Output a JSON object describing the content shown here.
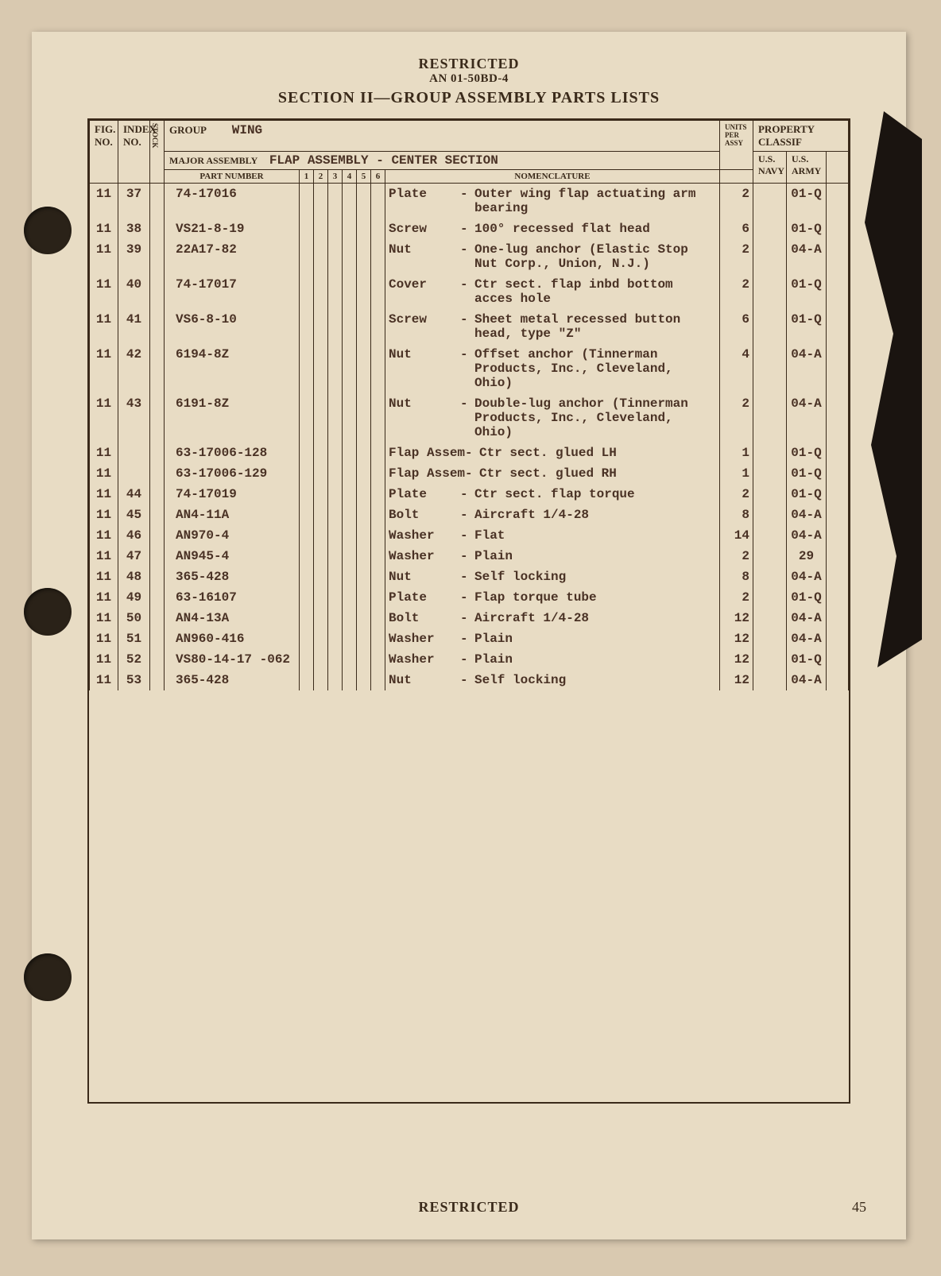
{
  "header": {
    "classification": "RESTRICTED",
    "doc_id": "AN 01-50BD-4",
    "section_title": "SECTION II—GROUP ASSEMBLY PARTS LISTS"
  },
  "table_header": {
    "fig_no": "FIG. NO.",
    "index_no": "INDEX NO.",
    "stock": "STOCK",
    "group_label": "GROUP",
    "group_value": "WING",
    "major_assembly_label": "MAJOR ASSEMBLY",
    "major_assembly_value": "FLAP ASSEMBLY - CENTER SECTION",
    "part_number": "PART NUMBER",
    "level_cols": [
      "1",
      "2",
      "3",
      "4",
      "5",
      "6"
    ],
    "nomenclature": "NOMENCLATURE",
    "units": "UNITS PER ASSY",
    "property_class": "PROPERTY CLASSIF",
    "navy": "U.S. NAVY",
    "army": "U.S. ARMY"
  },
  "rows": [
    {
      "fig": "11",
      "idx": "37",
      "part": "74-17016",
      "type": "Plate",
      "desc": "Outer wing flap actuating arm bearing",
      "units": "2",
      "army": "01-Q"
    },
    {
      "fig": "11",
      "idx": "38",
      "part": "VS21-8-19",
      "type": "Screw",
      "desc": "100° recessed flat head",
      "units": "6",
      "army": "01-Q"
    },
    {
      "fig": "11",
      "idx": "39",
      "part": "22A17-82",
      "type": "Nut",
      "desc": "One-lug anchor (Elastic Stop Nut Corp., Union, N.J.)",
      "units": "2",
      "army": "04-A"
    },
    {
      "fig": "11",
      "idx": "40",
      "part": "74-17017",
      "type": "Cover",
      "desc": "Ctr sect. flap inbd bottom acces hole",
      "units": "2",
      "army": "01-Q"
    },
    {
      "fig": "11",
      "idx": "41",
      "part": "VS6-8-10",
      "type": "Screw",
      "desc": "Sheet metal recessed button head, type \"Z\"",
      "units": "6",
      "army": "01-Q"
    },
    {
      "fig": "11",
      "idx": "42",
      "part": "6194-8Z",
      "type": "Nut",
      "desc": "Offset anchor (Tinnerman Products, Inc., Cleveland, Ohio)",
      "units": "4",
      "army": "04-A"
    },
    {
      "fig": "11",
      "idx": "43",
      "part": "6191-8Z",
      "type": "Nut",
      "desc": "Double-lug anchor (Tinnerman Products, Inc., Cleveland, Ohio)",
      "units": "2",
      "army": "04-A"
    },
    {
      "fig": "11",
      "idx": "",
      "part": "63-17006-128",
      "type": "Flap Assem",
      "desc": "Ctr sect. glued LH",
      "units": "1",
      "army": "01-Q"
    },
    {
      "fig": "11",
      "idx": "",
      "part": "63-17006-129",
      "type": "Flap Assem",
      "desc": "Ctr sect. glued RH",
      "units": "1",
      "army": "01-Q"
    },
    {
      "fig": "11",
      "idx": "44",
      "part": "74-17019",
      "type": "Plate",
      "desc": "Ctr sect. flap torque",
      "units": "2",
      "army": "01-Q"
    },
    {
      "fig": "11",
      "idx": "45",
      "part": "AN4-11A",
      "type": "Bolt",
      "desc": "Aircraft 1/4-28",
      "units": "8",
      "army": "04-A"
    },
    {
      "fig": "11",
      "idx": "46",
      "part": "AN970-4",
      "type": "Washer",
      "desc": "Flat",
      "units": "14",
      "army": "04-A"
    },
    {
      "fig": "11",
      "idx": "47",
      "part": "AN945-4",
      "type": "Washer",
      "desc": "Plain",
      "units": "2",
      "army": "29"
    },
    {
      "fig": "11",
      "idx": "48",
      "part": "365-428",
      "type": "Nut",
      "desc": "Self locking",
      "units": "8",
      "army": "04-A"
    },
    {
      "fig": "11",
      "idx": "49",
      "part": "63-16107",
      "type": "Plate",
      "desc": "Flap torque tube",
      "units": "2",
      "army": "01-Q"
    },
    {
      "fig": "11",
      "idx": "50",
      "part": "AN4-13A",
      "type": "Bolt",
      "desc": "Aircraft 1/4-28",
      "units": "12",
      "army": "04-A"
    },
    {
      "fig": "11",
      "idx": "51",
      "part": "AN960-416",
      "type": "Washer",
      "desc": "Plain",
      "units": "12",
      "army": "04-A"
    },
    {
      "fig": "11",
      "idx": "52",
      "part": "VS80-14-17 -062",
      "type": "Washer",
      "desc": "Plain",
      "units": "12",
      "army": "01-Q"
    },
    {
      "fig": "11",
      "idx": "53",
      "part": "365-428",
      "type": "Nut",
      "desc": "Self locking",
      "units": "12",
      "army": "04-A"
    }
  ],
  "footer": {
    "classification": "RESTRICTED",
    "page_number": "45"
  },
  "colors": {
    "page_bg": "#e8dcc4",
    "body_bg": "#d9c9b0",
    "ink": "#3a2a1a",
    "typewriter": "#4a3225"
  }
}
